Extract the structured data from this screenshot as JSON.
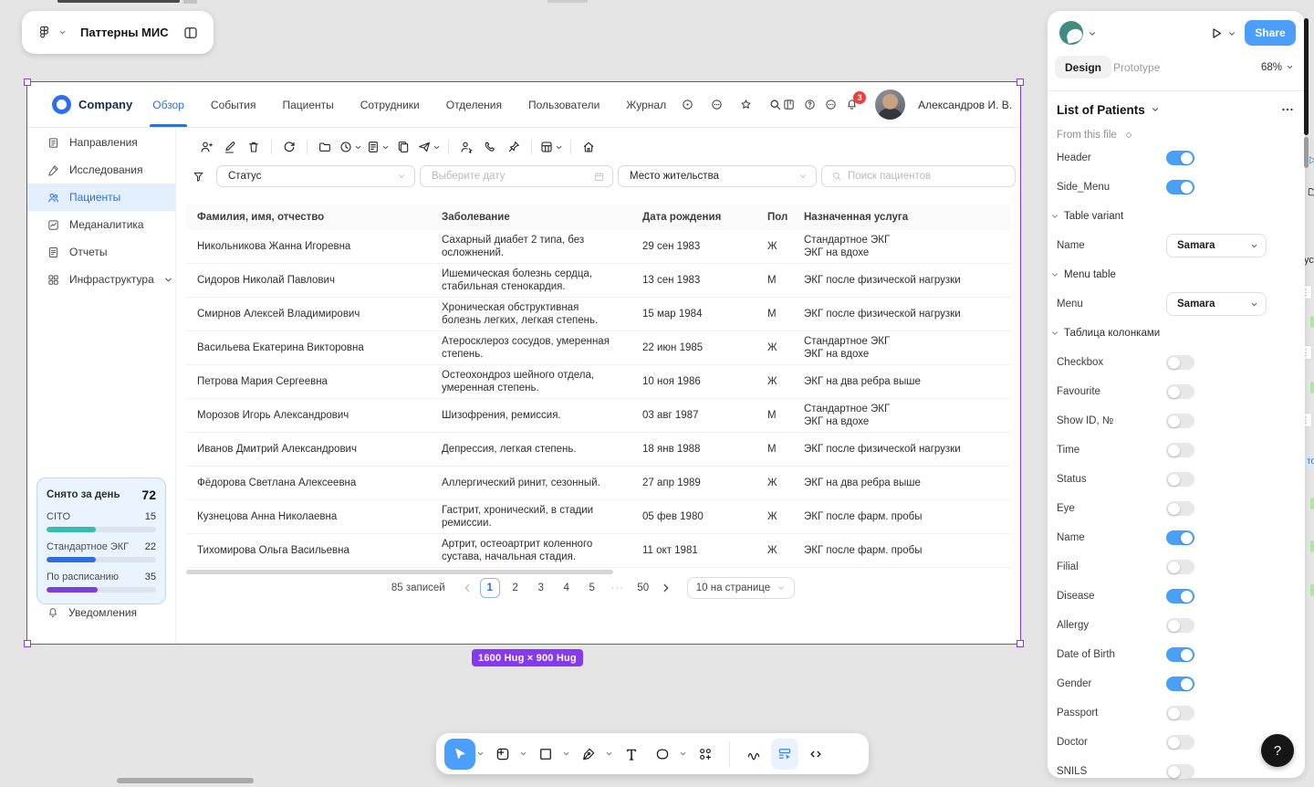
{
  "colors": {
    "accent_blue": "#2E6FE0",
    "figma_blue": "#4B9EF9",
    "selection_purple": "#8639F0",
    "teal": "#35BCB3",
    "violet": "#7B40D8",
    "badge_red": "#F03E3E"
  },
  "figma": {
    "file_title": "Паттерны МИС",
    "share_label": "Share",
    "tabs": {
      "design": "Design",
      "prototype": "Prototype"
    },
    "zoom_level": "68%",
    "selection": {
      "component_name": "List of Patients",
      "source_label": "From this file",
      "size_badge": "1600 Hug × 900 Hug"
    },
    "panel_rows": [
      {
        "type": "toggle",
        "label": "Header",
        "on": true
      },
      {
        "type": "toggle",
        "label": "Side_Menu",
        "on": true
      },
      {
        "type": "section",
        "label": "Table variant"
      },
      {
        "type": "select",
        "label": "Name",
        "value": "Samara"
      },
      {
        "type": "section",
        "label": "Menu table"
      },
      {
        "type": "select",
        "label": "Menu",
        "value": "Samara"
      },
      {
        "type": "section",
        "label": "Таблица колонками"
      },
      {
        "type": "toggle",
        "label": "Checkbox",
        "on": false
      },
      {
        "type": "toggle",
        "label": "Favourite",
        "on": false
      },
      {
        "type": "toggle",
        "label": "Show ID, №",
        "on": false
      },
      {
        "type": "toggle",
        "label": "Time",
        "on": false
      },
      {
        "type": "toggle",
        "label": "Status",
        "on": false
      },
      {
        "type": "toggle",
        "label": "Eye",
        "on": false
      },
      {
        "type": "toggle",
        "label": "Name",
        "on": true
      },
      {
        "type": "toggle",
        "label": "Filial",
        "on": false
      },
      {
        "type": "toggle",
        "label": "Disease",
        "on": true
      },
      {
        "type": "toggle",
        "label": "Allergy",
        "on": false
      },
      {
        "type": "toggle",
        "label": "Date of Birth",
        "on": true
      },
      {
        "type": "toggle",
        "label": "Gender",
        "on": true
      },
      {
        "type": "toggle",
        "label": "Passport",
        "on": false
      },
      {
        "type": "toggle",
        "label": "Doctor",
        "on": false
      },
      {
        "type": "toggle",
        "label": "SNILS",
        "on": false
      }
    ],
    "bottom_tools": [
      {
        "icon": "move",
        "active": true,
        "caret": true
      },
      {
        "icon": "frame",
        "caret": true
      },
      {
        "icon": "rectangle",
        "caret": true
      },
      {
        "icon": "pen",
        "caret": true
      },
      {
        "icon": "text"
      },
      {
        "icon": "shape",
        "caret": true
      },
      {
        "icon": "resources"
      },
      {
        "divider": true
      },
      {
        "icon": "draw"
      },
      {
        "icon": "edit-grid",
        "highlight": true
      },
      {
        "icon": "dev-mode"
      }
    ],
    "help_label": "?",
    "edge_fragments": {
      "text_1": "ус",
      "text_2": "тоя"
    }
  },
  "app": {
    "brand": "Company",
    "header": {
      "nav": [
        {
          "label": "Обзор",
          "active": true
        },
        {
          "label": "События"
        },
        {
          "label": "Пациенты"
        },
        {
          "label": "Сотрудники"
        },
        {
          "label": "Отделения"
        },
        {
          "label": "Пользователи"
        },
        {
          "label": "Журнал"
        }
      ],
      "quick_icons": [
        "target",
        "chat",
        "star",
        "search"
      ],
      "right_icons": [
        "board",
        "helpc",
        "chatd"
      ],
      "notification_count": "3",
      "user_name": "Александров И. В."
    },
    "sidebar": {
      "items": [
        {
          "icon": "report",
          "label": "Направления"
        },
        {
          "icon": "research",
          "label": "Исследования"
        },
        {
          "icon": "patients",
          "label": "Пациенты",
          "active": true
        },
        {
          "icon": "analytics",
          "label": "Меданалитика"
        },
        {
          "icon": "filedoc",
          "label": "Отчеты"
        },
        {
          "icon": "infra",
          "label": "Инфраструктура",
          "chevron": true
        }
      ],
      "notifications_label": "Уведомления"
    },
    "stats": {
      "title": "Снято за день",
      "total": "72",
      "metrics": [
        {
          "label": "CITO",
          "value": "15",
          "color": "#35BCB3",
          "pct": 45
        },
        {
          "label": "Стандартное ЭКГ",
          "value": "22",
          "color": "#2E6FE0",
          "pct": 45
        },
        {
          "label": "По расписанию",
          "value": "35",
          "color": "#7B40D8",
          "pct": 47
        }
      ]
    },
    "toolbar": {
      "groups": [
        [
          {
            "icon": "user-add"
          },
          {
            "icon": "edit"
          },
          {
            "icon": "trash"
          }
        ],
        [
          {
            "icon": "refresh"
          }
        ],
        [
          {
            "icon": "folder"
          },
          {
            "icon": "clock",
            "caret": true
          },
          {
            "icon": "filedoc",
            "caret": true
          },
          {
            "icon": "copy"
          },
          {
            "icon": "send",
            "caret": true
          }
        ],
        [
          {
            "icon": "user-pin"
          },
          {
            "icon": "phone"
          },
          {
            "icon": "pin"
          }
        ],
        [
          {
            "icon": "grid",
            "caret": true
          }
        ],
        [
          {
            "icon": "home"
          }
        ]
      ]
    },
    "filters": {
      "status_label": "Статус",
      "date_placeholder": "Выберите дату",
      "residence_label": "Место жительства",
      "search_placeholder": "Поиск пациентов"
    },
    "table": {
      "columns": [
        "Фамилия, имя, отчество",
        "Заболевание",
        "Дата рождения",
        "Пол",
        "Назначенная услуга"
      ],
      "rows": [
        {
          "name": "Никольникова Жанна Игоревна",
          "disease": "Сахарный диабет 2 типа, без осложнений.",
          "dob": "29 сен 1983",
          "gender": "Ж",
          "services": [
            "Стандартное ЭКГ",
            "ЭКГ на вдохе"
          ]
        },
        {
          "name": "Сидоров Николай Павлович",
          "disease": "Ишемическая болезнь сердца, стабильная стенокардия.",
          "dob": "13 сен 1983",
          "gender": "М",
          "services": [
            "ЭКГ после физической нагрузки"
          ]
        },
        {
          "name": "Смирнов Алексей Владимирович",
          "disease": "Хроническая обструктивная болезнь легких, легкая степень.",
          "dob": "15 мар 1984",
          "gender": "М",
          "services": [
            "ЭКГ после физической нагрузки"
          ]
        },
        {
          "name": "Васильева Екатерина Викторовна",
          "disease": "Атеросклероз сосудов, умеренная степень.",
          "dob": "22 июн 1985",
          "gender": "Ж",
          "services": [
            "Стандартное ЭКГ",
            "ЭКГ на вдохе"
          ]
        },
        {
          "name": "Петрова Мария Сергеевна",
          "disease": "Остеохондроз шейного отдела, умеренная степень.",
          "dob": "10 ноя 1986",
          "gender": "Ж",
          "services": [
            "ЭКГ на два ребра выше"
          ]
        },
        {
          "name": "Морозов Игорь Александрович",
          "disease": "Шизофрения, ремиссия.",
          "dob": "03 авг 1987",
          "gender": "М",
          "services": [
            "Стандартное ЭКГ",
            "ЭКГ на вдохе"
          ]
        },
        {
          "name": "Иванов Дмитрий Александрович",
          "disease": "Депрессия, легкая степень.",
          "dob": "18 янв 1988",
          "gender": "М",
          "services": [
            "ЭКГ после физической нагрузки"
          ]
        },
        {
          "name": "Фёдорова Светлана Алексеевна",
          "disease": "Аллергический ринит, сезонный.",
          "dob": "27 апр 1989",
          "gender": "Ж",
          "services": [
            "ЭКГ на два ребра выше"
          ]
        },
        {
          "name": "Кузнецова Анна Николаевна",
          "disease": "Гастрит, хронический, в стадии ремиссии.",
          "dob": "05 фев 1980",
          "gender": "Ж",
          "services": [
            "ЭКГ после фарм. пробы"
          ]
        },
        {
          "name": "Тихомирова Ольга Васильевна",
          "disease": "Артрит, остеоартрит коленного сустава, начальная стадия.",
          "dob": "11 окт 1981",
          "gender": "Ж",
          "services": [
            "ЭКГ после фарм. пробы"
          ]
        }
      ]
    },
    "pagination": {
      "total": "85 записей",
      "pages": [
        "1",
        "2",
        "3",
        "4",
        "5",
        "···",
        "50"
      ],
      "active_page": "1",
      "per_page": "10 на странице"
    }
  }
}
